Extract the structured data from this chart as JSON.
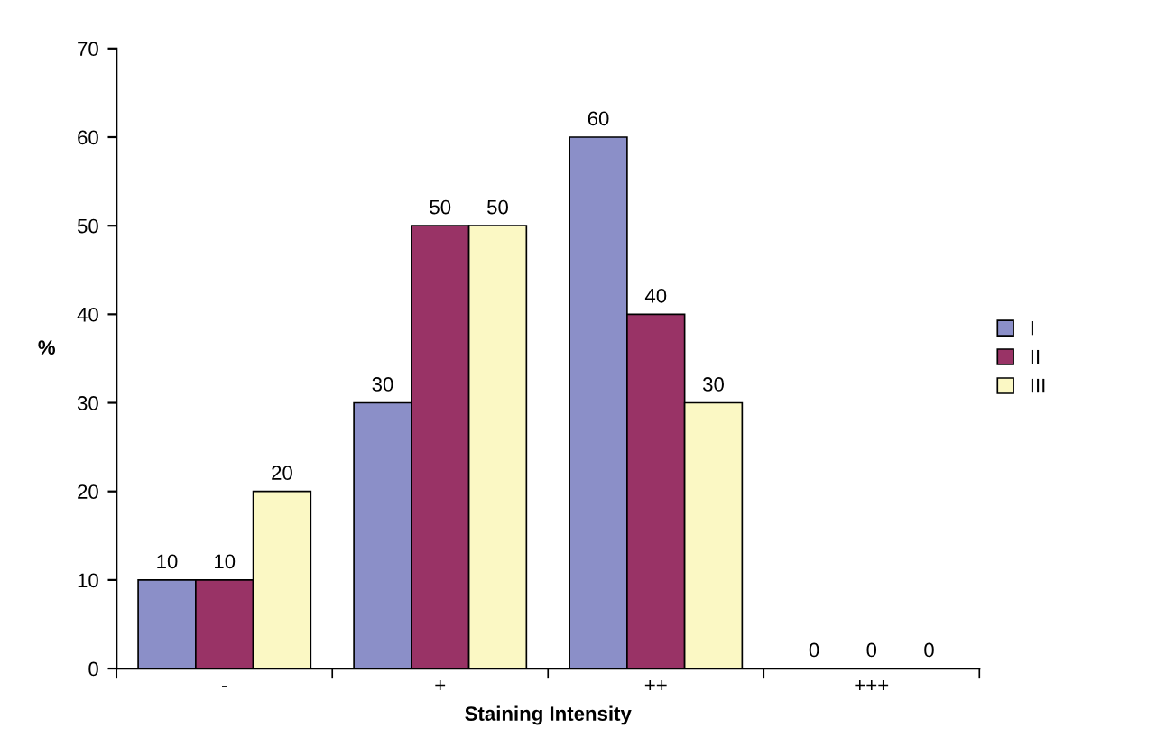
{
  "chart_data": {
    "type": "bar",
    "xlabel": "Staining Intensity",
    "ylabel": "%",
    "categories": [
      "-",
      "+",
      "++",
      "+++"
    ],
    "series": [
      {
        "name": "I",
        "color": "#8b8fc8",
        "values": [
          10,
          30,
          60,
          0
        ]
      },
      {
        "name": "II",
        "color": "#993366",
        "values": [
          10,
          50,
          40,
          0
        ]
      },
      {
        "name": "III",
        "color": "#fbf8c4",
        "values": [
          20,
          50,
          30,
          0
        ]
      }
    ],
    "ylim": [
      0,
      70
    ],
    "yticks": [
      0,
      10,
      20,
      30,
      40,
      50,
      60,
      70
    ],
    "data_labels": true,
    "legend": "right",
    "grid": false
  }
}
